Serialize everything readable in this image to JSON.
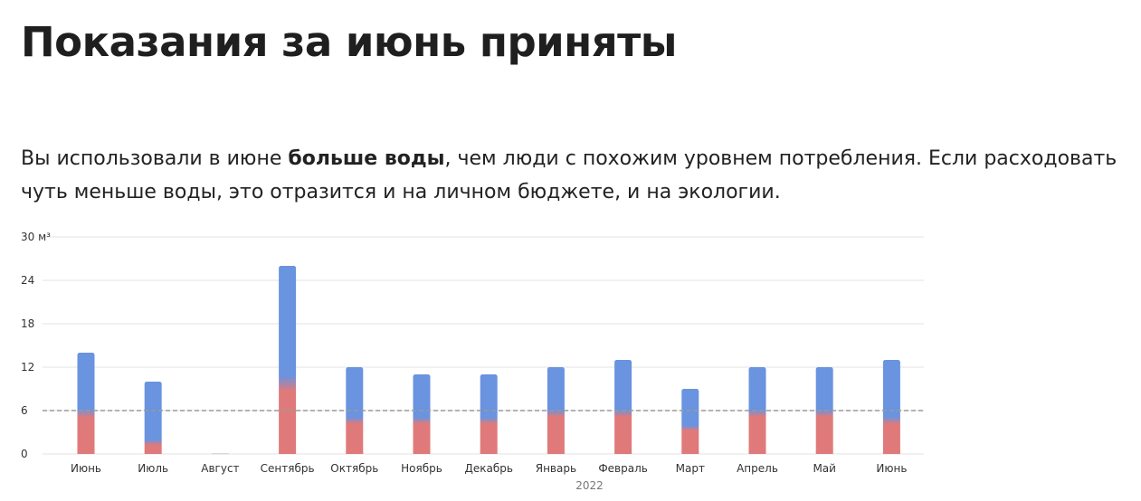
{
  "header": {
    "title": "Показания за июнь приняты"
  },
  "summary": {
    "part1": "Вы использовали в июне ",
    "bold": "больше воды",
    "part2": ", чем люди с похожим уровнем потребления. Если расходовать чуть меньше воды, это отразится и на личном бюджете, и на экологии."
  },
  "colors": {
    "blue": "#6a93e0",
    "red": "#e07a7a",
    "grid": "#e3e3e3",
    "reference_line": "#9a9a9a",
    "zero_bar": "#d8d8d8"
  },
  "chart_data": {
    "type": "bar",
    "unit": "м³",
    "ylim": [
      0,
      30
    ],
    "yticks": [
      0,
      6,
      12,
      18,
      24,
      30
    ],
    "ytick_labels": [
      "0",
      "6",
      "12",
      "18",
      "24",
      "30 м³"
    ],
    "categories": [
      "Июнь",
      "Июль",
      "Август",
      "Сентябрь",
      "Октябрь",
      "Ноябрь",
      "Декабрь",
      "Январь",
      "Февраль",
      "Март",
      "Апрель",
      "Май",
      "Июнь"
    ],
    "values": [
      14,
      10,
      0,
      26,
      12,
      11,
      11,
      12,
      13,
      9,
      12,
      12,
      13
    ],
    "lower_values": [
      5.5,
      1.5,
      0,
      9.5,
      4.5,
      4.5,
      4.5,
      5.5,
      5.5,
      3.5,
      5.5,
      5.5,
      4.5
    ],
    "reference_value": 6,
    "year_label": "2022",
    "year_label_under": [
      "Январь",
      "Февраль"
    ],
    "grid": true
  }
}
